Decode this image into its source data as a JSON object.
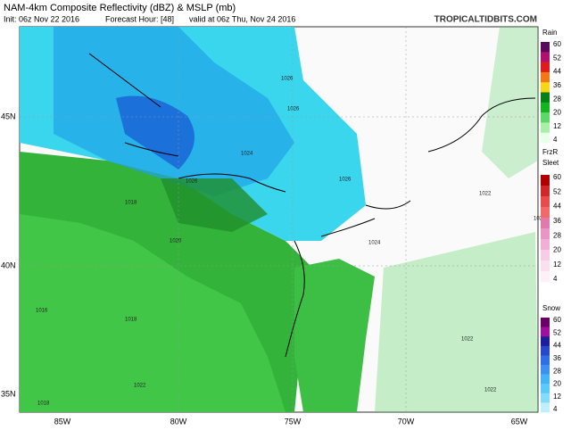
{
  "header": {
    "title": "NAM-4km Composite Reflectivity (dBZ) & MSLP (mb)",
    "init": "Init: 06z Nov 22 2016",
    "forecast_hour": "Forecast Hour: [48]",
    "valid": "valid at 06z Thu, Nov 24 2016",
    "site": "TROPICALTIDBITS.COM"
  },
  "axes": {
    "lat": [
      "45N",
      "40N",
      "35N"
    ],
    "lon": [
      "85W",
      "80W",
      "75W",
      "70W",
      "65W"
    ]
  },
  "legend": {
    "rain": {
      "label": "Rain",
      "ticks": [
        60,
        52,
        44,
        36,
        28,
        20,
        12,
        4
      ]
    },
    "frzr": {
      "label": "FrzR",
      "label2": "Sleet",
      "ticks": [
        60,
        52,
        44,
        36,
        28,
        20,
        12,
        4
      ]
    },
    "snow": {
      "label": "Snow",
      "ticks": [
        60,
        52,
        44,
        36,
        28,
        20,
        12,
        4
      ]
    }
  },
  "isobars": [
    "1026",
    "1026",
    "1024",
    "1026",
    "1018",
    "1020",
    "1026",
    "1024",
    "1022",
    "1022",
    "1022",
    "1024",
    "1016",
    "1018",
    "1022",
    "1018"
  ]
}
